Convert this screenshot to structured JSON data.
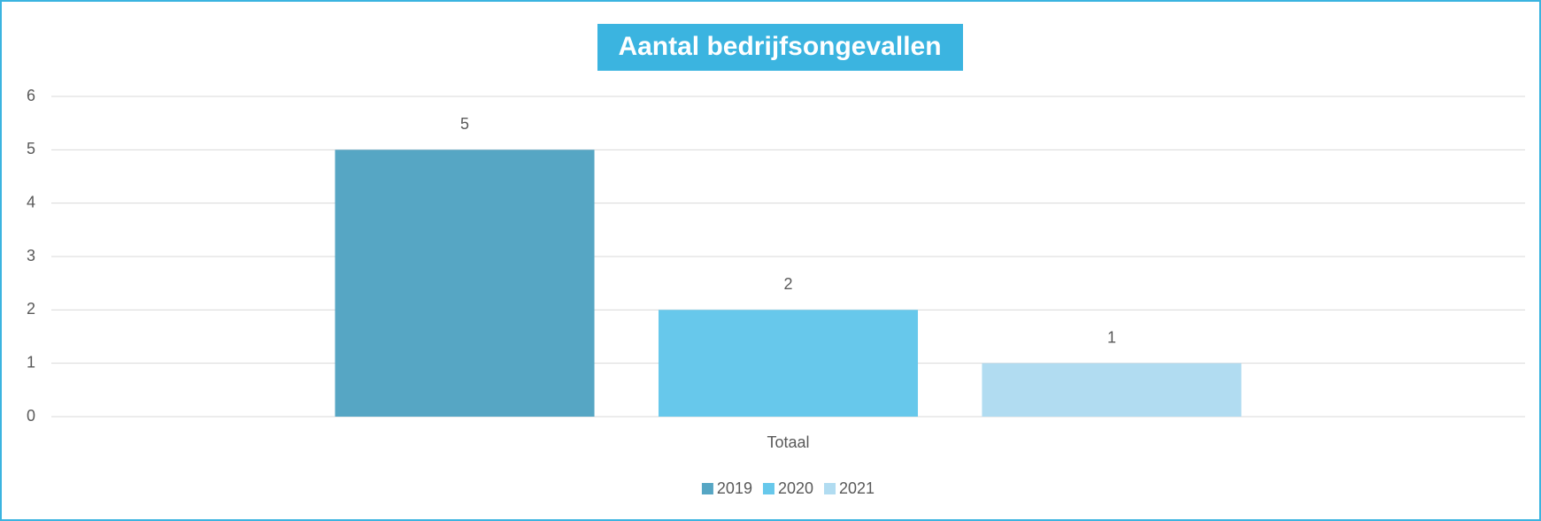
{
  "chart_data": {
    "type": "bar",
    "title": "Aantal bedrijfsongevallen",
    "categories": [
      "Totaal"
    ],
    "series": [
      {
        "name": "2019",
        "color": "#56a6c4",
        "values": [
          5
        ]
      },
      {
        "name": "2020",
        "color": "#67c8eb",
        "values": [
          2
        ]
      },
      {
        "name": "2021",
        "color": "#b1dcf1",
        "values": [
          1
        ]
      }
    ],
    "ylim": [
      0,
      6
    ],
    "yticks": [
      0,
      1,
      2,
      3,
      4,
      5,
      6
    ],
    "grid": true,
    "legend": "bottom"
  }
}
